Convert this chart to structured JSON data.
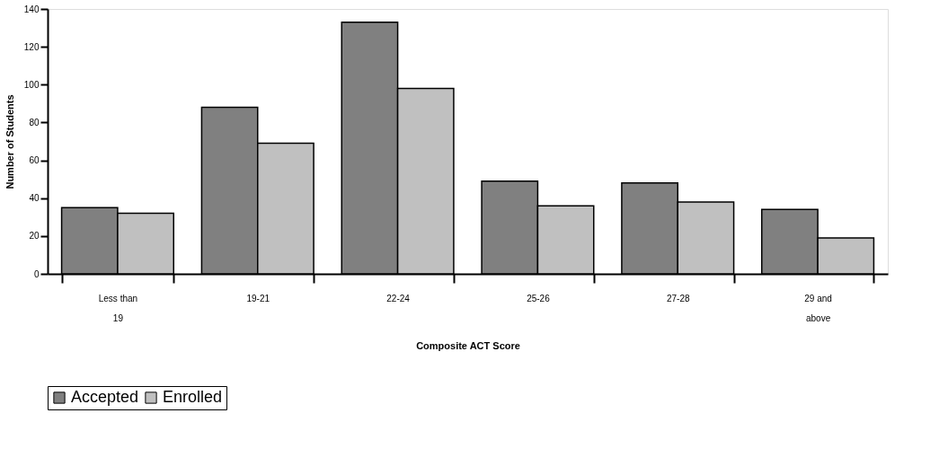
{
  "chart_data": {
    "type": "bar",
    "xlabel": "Composite ACT Score",
    "ylabel": "Number of Students",
    "categories": [
      "Less than 19",
      "19-21",
      "22-24",
      "25-26",
      "27-28",
      "29 and above"
    ],
    "series": [
      {
        "name": "Accepted",
        "color": "#808080",
        "values": [
          35,
          88,
          133,
          49,
          48,
          34
        ]
      },
      {
        "name": "Enrolled",
        "color": "#c0c0c0",
        "values": [
          32,
          69,
          98,
          36,
          38,
          19
        ]
      }
    ],
    "ylim": [
      0,
      140
    ],
    "yticks": [
      0,
      20,
      40,
      60,
      80,
      100,
      120,
      140
    ],
    "grid": false,
    "legend": "bottom"
  }
}
